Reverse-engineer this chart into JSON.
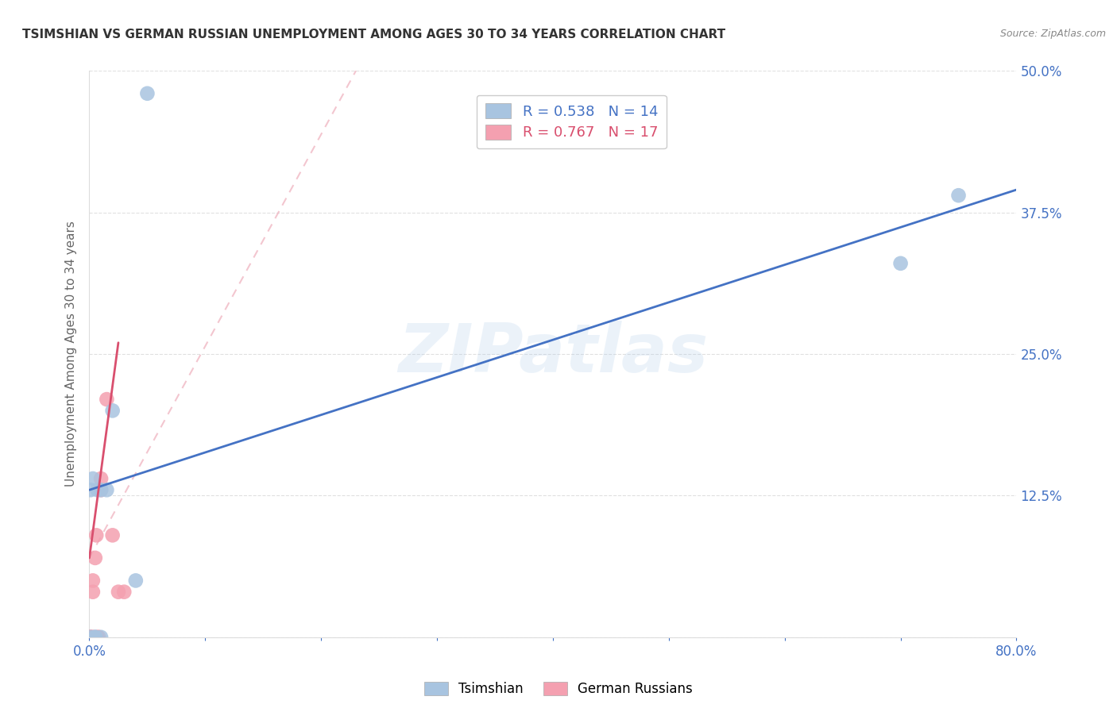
{
  "title": "TSIMSHIAN VS GERMAN RUSSIAN UNEMPLOYMENT AMONG AGES 30 TO 34 YEARS CORRELATION CHART",
  "source": "Source: ZipAtlas.com",
  "ylabel": "Unemployment Among Ages 30 to 34 years",
  "watermark": "ZIPatlas",
  "xlim": [
    0.0,
    0.8
  ],
  "ylim": [
    0.0,
    0.5
  ],
  "xticks": [
    0.0,
    0.1,
    0.2,
    0.3,
    0.4,
    0.5,
    0.6,
    0.7,
    0.8
  ],
  "yticks": [
    0.0,
    0.125,
    0.25,
    0.375,
    0.5
  ],
  "xtick_labels": [
    "0.0%",
    "",
    "",
    "",
    "",
    "",
    "",
    "",
    "80.0%"
  ],
  "ytick_labels_right": [
    "",
    "12.5%",
    "25.0%",
    "37.5%",
    "50.0%"
  ],
  "tsimshian_R": 0.538,
  "tsimshian_N": 14,
  "german_russian_R": 0.767,
  "german_russian_N": 17,
  "tsimshian_color": "#a8c4e0",
  "german_russian_color": "#f4a0b0",
  "tsimshian_line_color": "#4472c4",
  "german_russian_line_color": "#d94f6e",
  "german_russian_dashed_color": "#f0b8c4",
  "tsimshian_x": [
    0.001,
    0.001,
    0.003,
    0.005,
    0.005,
    0.007,
    0.01,
    0.01,
    0.015,
    0.02,
    0.04,
    0.05,
    0.7,
    0.75
  ],
  "tsimshian_y": [
    0.0,
    0.13,
    0.14,
    0.0,
    0.0,
    0.13,
    0.13,
    0.0,
    0.13,
    0.2,
    0.05,
    0.48,
    0.33,
    0.39
  ],
  "german_russian_x": [
    0.0,
    0.001,
    0.001,
    0.002,
    0.003,
    0.003,
    0.004,
    0.005,
    0.006,
    0.007,
    0.008,
    0.01,
    0.01,
    0.015,
    0.02,
    0.025,
    0.03
  ],
  "german_russian_y": [
    0.0,
    0.0,
    0.0,
    0.0,
    0.04,
    0.05,
    0.0,
    0.07,
    0.09,
    0.0,
    0.0,
    0.13,
    0.14,
    0.21,
    0.09,
    0.04,
    0.04
  ],
  "tsimshian_trend": [
    0.0,
    0.8,
    0.13,
    0.395
  ],
  "german_russian_solid": [
    0.0,
    0.025,
    0.07,
    0.26
  ],
  "german_russian_dashed": [
    0.0,
    0.23,
    0.07,
    0.5
  ],
  "background_color": "#ffffff",
  "grid_color": "#cccccc",
  "tick_color": "#4472c4",
  "label_color": "#666666",
  "title_color": "#333333",
  "source_color": "#888888"
}
